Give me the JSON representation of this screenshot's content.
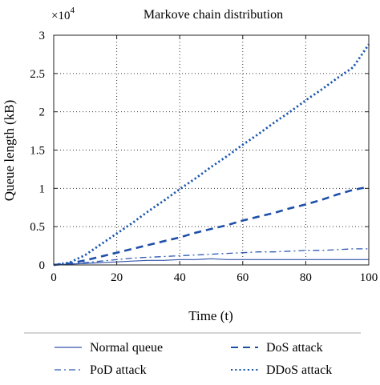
{
  "chart_data": {
    "type": "line",
    "title": "Markove chain distribution",
    "xlabel": "Time (t)",
    "ylabel": "Queue length (kB)",
    "y_multiplier_label": "×10",
    "y_multiplier_exponent": "4",
    "xlim": [
      0,
      100
    ],
    "ylim": [
      0,
      3
    ],
    "grid": true,
    "legend_position": "bottom",
    "x_ticks": [
      0,
      20,
      40,
      60,
      80,
      100
    ],
    "x_tick_labels": [
      "0",
      "20",
      "40",
      "60",
      "80",
      "100"
    ],
    "y_ticks": [
      0,
      0.5,
      1,
      1.5,
      2,
      2.5,
      3
    ],
    "y_tick_labels": [
      "0",
      "0.5",
      "1",
      "1.5",
      "2",
      "2.5",
      "3"
    ],
    "x": [
      0,
      5,
      10,
      15,
      20,
      25,
      30,
      35,
      40,
      45,
      50,
      55,
      60,
      65,
      70,
      75,
      80,
      85,
      90,
      95,
      100
    ],
    "series": [
      {
        "name": "Normal queue",
        "style": "solid",
        "width": 1.2,
        "color": "#3355aa",
        "values": [
          0,
          0.01,
          0.02,
          0.03,
          0.04,
          0.05,
          0.06,
          0.06,
          0.07,
          0.07,
          0.08,
          0.07,
          0.07,
          0.07,
          0.07,
          0.07,
          0.07,
          0.07,
          0.07,
          0.07,
          0.07
        ]
      },
      {
        "name": "DoS attack",
        "style": "dash",
        "width": 2.6,
        "color": "#1f4fa8",
        "values": [
          0,
          0.02,
          0.06,
          0.11,
          0.16,
          0.21,
          0.26,
          0.31,
          0.36,
          0.42,
          0.47,
          0.52,
          0.58,
          0.63,
          0.68,
          0.74,
          0.79,
          0.85,
          0.92,
          0.98,
          1.02
        ]
      },
      {
        "name": "PoD attack",
        "style": "dashdot",
        "width": 1.3,
        "color": "#2f5ab5",
        "values": [
          0,
          0.01,
          0.03,
          0.05,
          0.07,
          0.09,
          0.1,
          0.11,
          0.12,
          0.13,
          0.14,
          0.15,
          0.16,
          0.17,
          0.17,
          0.18,
          0.19,
          0.19,
          0.2,
          0.21,
          0.21
        ]
      },
      {
        "name": "DDoS attack",
        "style": "dot",
        "width": 2.8,
        "color": "#1a57b0",
        "values": [
          0,
          0.03,
          0.13,
          0.27,
          0.41,
          0.55,
          0.7,
          0.84,
          0.99,
          1.13,
          1.28,
          1.42,
          1.57,
          1.71,
          1.86,
          2.0,
          2.15,
          2.29,
          2.44,
          2.58,
          2.88
        ]
      }
    ],
    "legend": {
      "columns": 2,
      "order": [
        "Normal queue",
        "DoS attack",
        "PoD attack",
        "DDoS attack"
      ]
    }
  }
}
